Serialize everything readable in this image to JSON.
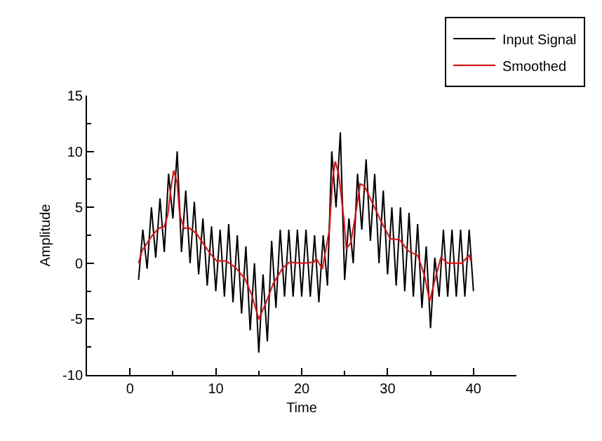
{
  "chart_data": {
    "type": "line",
    "xlabel": "Time",
    "ylabel": "Amplitude",
    "xlim": [
      -5,
      45
    ],
    "xticks": [
      0,
      10,
      20,
      30,
      40
    ],
    "ylim": [
      -10,
      15
    ],
    "yticks": [
      -10,
      -5,
      0,
      5,
      10,
      15
    ],
    "grid": false,
    "legend": "top right",
    "marker": "none",
    "line_style": "solid",
    "series": [
      {
        "name": "Input Signal",
        "color": "#000000",
        "x": [
          1.0,
          1.5,
          2.0,
          2.5,
          3.0,
          3.5,
          4.0,
          4.5,
          5.0,
          5.5,
          6.0,
          6.5,
          7.0,
          7.5,
          8.0,
          8.5,
          9.0,
          9.5,
          10.0,
          10.5,
          11.0,
          11.5,
          12.0,
          12.5,
          13.0,
          13.5,
          14.0,
          14.5,
          15.0,
          15.5,
          16.0,
          16.5,
          17.0,
          17.5,
          18.0,
          18.5,
          19.0,
          19.5,
          20.0,
          20.5,
          21.0,
          21.5,
          22.0,
          22.5,
          23.0,
          23.5,
          24.0,
          24.5,
          25.0,
          25.5,
          26.0,
          26.5,
          27.0,
          27.5,
          28.0,
          28.5,
          29.0,
          29.5,
          30.0,
          30.5,
          31.0,
          31.5,
          32.0,
          32.5,
          33.0,
          33.5,
          34.0,
          34.5,
          35.0,
          35.5,
          36.0,
          36.5,
          37.0,
          37.5,
          38.0,
          38.5,
          39.0,
          39.5,
          40.0
        ],
        "values": [
          -1.5,
          3,
          -0.5,
          5,
          0.5,
          5.8,
          1,
          8,
          4,
          10,
          1,
          6.5,
          0,
          5.5,
          -1,
          4,
          -2,
          3.3,
          -2.5,
          3,
          -3,
          3.5,
          -3.5,
          2.5,
          -4.5,
          1.5,
          -6,
          0,
          -8,
          -1,
          -7,
          2,
          -4,
          3,
          -3,
          3,
          -3,
          3,
          -3,
          3,
          -3,
          2.5,
          -3.5,
          2.5,
          -2,
          10,
          5,
          11.7,
          -1.5,
          4,
          0,
          8,
          3,
          9.3,
          2,
          8,
          0,
          6.5,
          -1,
          5,
          -2,
          5,
          -2.5,
          4.5,
          -3,
          3.5,
          -4,
          1.5,
          -5.8,
          0.5,
          -3,
          3,
          -3,
          3,
          -3,
          3,
          -3,
          3,
          -2.5
        ]
      },
      {
        "name": "Smoothed",
        "color": "#ff0000",
        "x": [
          1.0,
          1.4,
          2.5,
          3.3,
          4.0,
          4.4,
          4.8,
          5.1,
          5.5,
          5.8,
          6.3,
          6.8,
          7.7,
          8.5,
          9.3,
          10.1,
          11.2,
          12.3,
          13.4,
          14.2,
          15.0,
          15.8,
          16.7,
          17.8,
          18.6,
          20.0,
          21.4,
          21.7,
          22.4,
          23.2,
          23.6,
          23.9,
          24.3,
          24.9,
          25.2,
          25.7,
          26.2,
          26.8,
          27.3,
          28.1,
          29.2,
          30.3,
          31.4,
          32.4,
          33.5,
          34.3,
          34.9,
          35.4,
          36.2,
          37.0,
          38.6,
          39.5,
          39.7
        ],
        "values": [
          0,
          1.1,
          2.4,
          3.1,
          3.3,
          4.3,
          6.9,
          8.3,
          7.2,
          4.3,
          3.1,
          3.2,
          2.7,
          1.8,
          0.9,
          0.2,
          0.2,
          -0.4,
          -1.4,
          -2.9,
          -5.0,
          -3.6,
          -1.8,
          -0.4,
          0.1,
          0,
          0.1,
          0.4,
          -0.5,
          2.9,
          7.6,
          9.1,
          8.0,
          4.0,
          1.3,
          1.8,
          4.0,
          7.1,
          6.9,
          5.6,
          3.8,
          2.2,
          2.1,
          1.1,
          0.7,
          -1.1,
          -3.4,
          -1.8,
          0.5,
          0,
          0,
          0.7,
          0.2
        ]
      }
    ]
  }
}
